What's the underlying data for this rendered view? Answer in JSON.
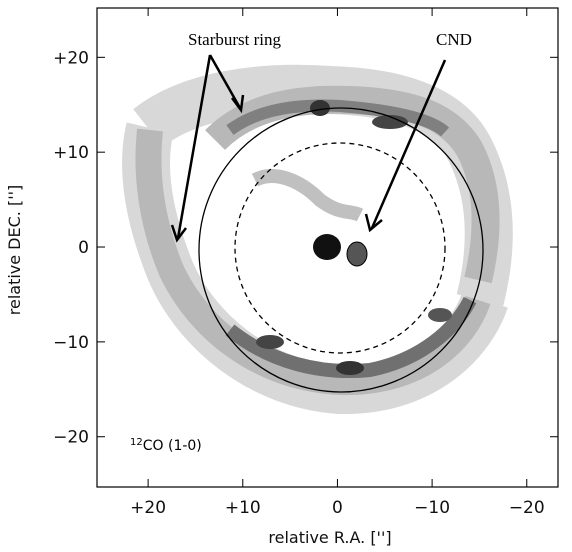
{
  "chart_data": {
    "type": "contour-map",
    "xlabel": "relative R.A. ['']",
    "ylabel": "relative DEC. ['']",
    "annotations": [
      "Starburst ring",
      "CND"
    ],
    "line_label": {
      "sup": "12",
      "text": "CO (1-0)"
    },
    "xlim": [
      25.4,
      -23.3
    ],
    "ylim": [
      -25.3,
      25.2
    ],
    "xticks": [
      {
        "value": 20,
        "label": "+20"
      },
      {
        "value": 10,
        "label": "+10"
      },
      0,
      {
        "value": -10,
        "label": "−10"
      },
      {
        "value": -20,
        "label": "−20"
      }
    ],
    "yticks": [
      {
        "value": 20,
        "label": "+20"
      },
      {
        "value": 10,
        "label": "+10"
      },
      0,
      {
        "value": -10,
        "label": "−10"
      },
      {
        "value": -20,
        "label": "−20"
      }
    ]
  }
}
